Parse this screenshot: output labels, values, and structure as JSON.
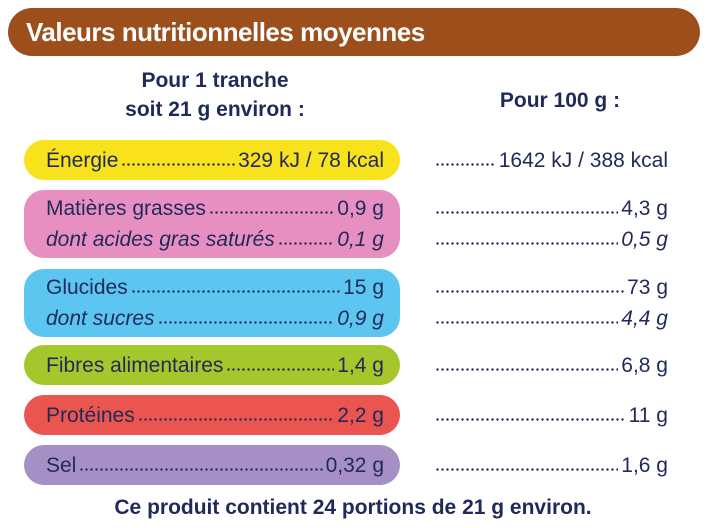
{
  "header": {
    "title": "Valeurs nutritionnelles moyennes"
  },
  "columns": {
    "per_portion": [
      "Pour 1 tranche",
      "soit 21 g environ :"
    ],
    "per_100g": "Pour 100 g :"
  },
  "rows": [
    {
      "label": "Énergie",
      "per_portion": "329 kJ / 78 kcal",
      "per_100g": "1642 kJ / 388 kcal"
    },
    {
      "label": "Matières grasses",
      "per_portion": "0,9 g",
      "per_100g": "4,3 g",
      "sub": {
        "label": "dont acides gras saturés",
        "per_portion": "0,1 g",
        "per_100g": "0,5 g"
      }
    },
    {
      "label": "Glucides",
      "per_portion": "15 g",
      "per_100g": "73 g",
      "sub": {
        "label": "dont sucres",
        "per_portion": "0,9 g",
        "per_100g": "4,4 g"
      }
    },
    {
      "label": "Fibres alimentaires",
      "per_portion": "1,4 g",
      "per_100g": "6,8 g"
    },
    {
      "label": "Protéines",
      "per_portion": "2,2 g",
      "per_100g": "11 g"
    },
    {
      "label": "Sel",
      "per_portion": "0,32 g",
      "per_100g": "1,6 g"
    }
  ],
  "footer": "Ce produit contient 24 portions de 21 g environ."
}
